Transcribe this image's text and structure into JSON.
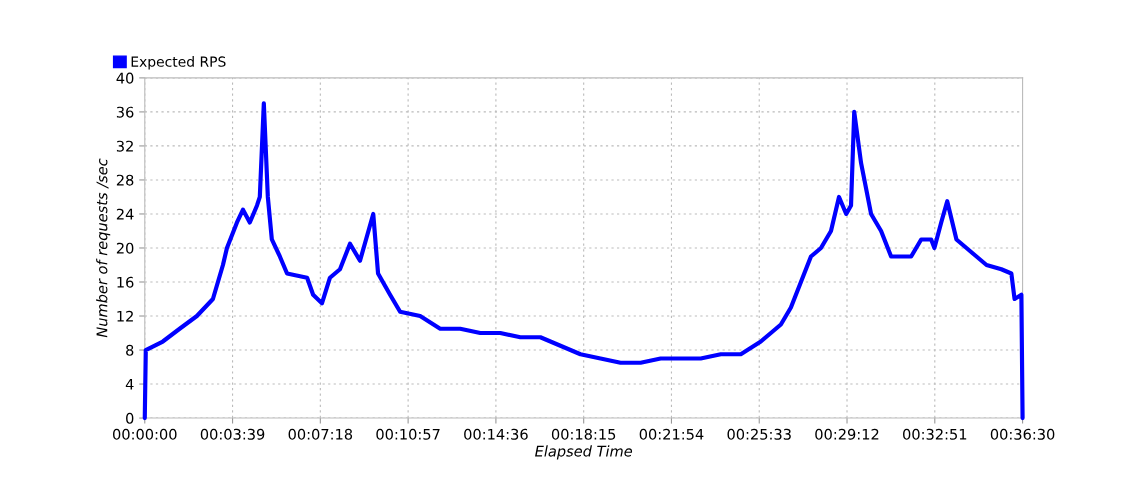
{
  "chart_data": {
    "type": "line",
    "xlabel": "Elapsed Time",
    "ylabel": "Number of requests /sec",
    "series": [
      {
        "name": "Expected RPS",
        "color": "#0000ff",
        "x": [
          0,
          2.5,
          45,
          87,
          130,
          170,
          195,
          205,
          230,
          245,
          262,
          280,
          287,
          297,
          307,
          317,
          337,
          355,
          405,
          420,
          442,
          462,
          487,
          512,
          537,
          570,
          582,
          612,
          637,
          687,
          737,
          787,
          837,
          887,
          937,
          987,
          1037,
          1087,
          1137,
          1187,
          1237,
          1287,
          1337,
          1387,
          1437,
          1487,
          1537,
          1562,
          1587,
          1612,
          1637,
          1662,
          1687,
          1712,
          1732,
          1750,
          1762,
          1770,
          1787,
          1812,
          1837,
          1862,
          1887,
          1912,
          1937,
          1962,
          1970,
          1987,
          2002,
          2025,
          2050,
          2075,
          2100,
          2137,
          2162,
          2170,
          2187,
          2190
        ],
        "values": [
          0,
          8,
          9,
          10.5,
          12,
          14,
          18,
          20,
          23,
          24.5,
          23,
          25,
          26,
          37,
          26,
          21,
          19,
          17,
          16.5,
          14.5,
          13.5,
          16.5,
          17.5,
          20.5,
          18.5,
          24,
          17,
          14.5,
          12.5,
          12,
          10.5,
          10.5,
          10,
          10,
          9.5,
          9.5,
          8.5,
          7.5,
          7,
          6.5,
          6.5,
          7,
          7,
          7,
          7.5,
          7.5,
          9,
          10,
          11,
          13,
          16,
          19,
          20,
          22,
          26,
          24,
          25,
          36,
          30,
          24,
          22,
          19,
          19,
          19,
          21,
          21,
          20,
          23,
          25.5,
          21,
          20,
          19,
          18,
          17.5,
          17,
          14,
          14.5,
          0
        ]
      }
    ],
    "legend": "top left",
    "xlim": [
      0,
      2190
    ],
    "xticks": [
      {
        "value": 0,
        "label": "00:00:00"
      },
      {
        "value": 219,
        "label": "00:03:39"
      },
      {
        "value": 438,
        "label": "00:07:18"
      },
      {
        "value": 657,
        "label": "00:10:57"
      },
      {
        "value": 876,
        "label": "00:14:36"
      },
      {
        "value": 1095,
        "label": "00:18:15"
      },
      {
        "value": 1314,
        "label": "00:21:54"
      },
      {
        "value": 1533,
        "label": "00:25:33"
      },
      {
        "value": 1752,
        "label": "00:29:12"
      },
      {
        "value": 1971,
        "label": "00:32:51"
      },
      {
        "value": 2190,
        "label": "00:36:30"
      }
    ],
    "ylim": [
      0,
      40
    ],
    "yticks": [
      0,
      4,
      8,
      12,
      16,
      20,
      24,
      28,
      32,
      36,
      40
    ],
    "grid": true,
    "marker": "none",
    "line_style": "solid"
  }
}
